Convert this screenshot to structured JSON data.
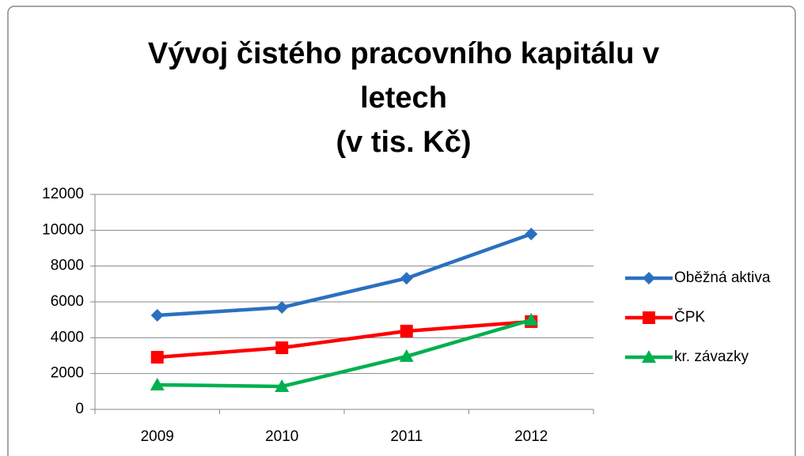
{
  "chart_data": {
    "type": "line",
    "title": "Vývoj čistého pracovního kapitálu v letech",
    "subtitle": "(v tis. Kč)",
    "categories": [
      "2009",
      "2010",
      "2011",
      "2012"
    ],
    "series": [
      {
        "name": "Oběžná aktiva",
        "color": "#2a70c0",
        "marker": "diamond",
        "values": [
          5250,
          5690,
          7320,
          9790
        ]
      },
      {
        "name": "ČPK",
        "color": "#ff0000",
        "marker": "square",
        "values": [
          2910,
          3440,
          4370,
          4900
        ]
      },
      {
        "name": "kr. závazky",
        "color": "#00b050",
        "marker": "triangle",
        "values": [
          1370,
          1280,
          2960,
          4990
        ]
      }
    ],
    "ylim": [
      0,
      12000
    ],
    "yticks": [
      0,
      2000,
      4000,
      6000,
      8000,
      10000,
      12000
    ],
    "grid": true,
    "legend": "right"
  }
}
